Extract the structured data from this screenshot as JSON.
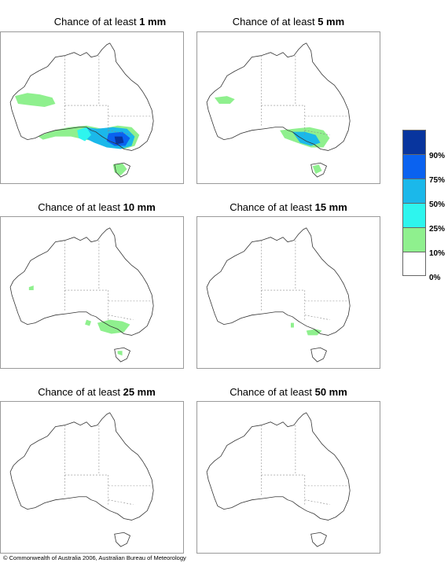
{
  "title_prefix": "Chance of at least",
  "panels": [
    {
      "amount": "1 mm"
    },
    {
      "amount": "5 mm"
    },
    {
      "amount": "10 mm"
    },
    {
      "amount": "15 mm"
    },
    {
      "amount": "25 mm"
    },
    {
      "amount": "50 mm"
    }
  ],
  "legend": {
    "labels": [
      "90%",
      "75%",
      "50%",
      "25%",
      "10%",
      "0%"
    ],
    "colors": [
      "#08359e",
      "#0a62f0",
      "#1bb8ea",
      "#2ef5ee",
      "#8ff08e",
      "#ffffff"
    ]
  },
  "copyright": "© Commonwealth of Australia 2006, Australian Bureau of Meteorology"
}
